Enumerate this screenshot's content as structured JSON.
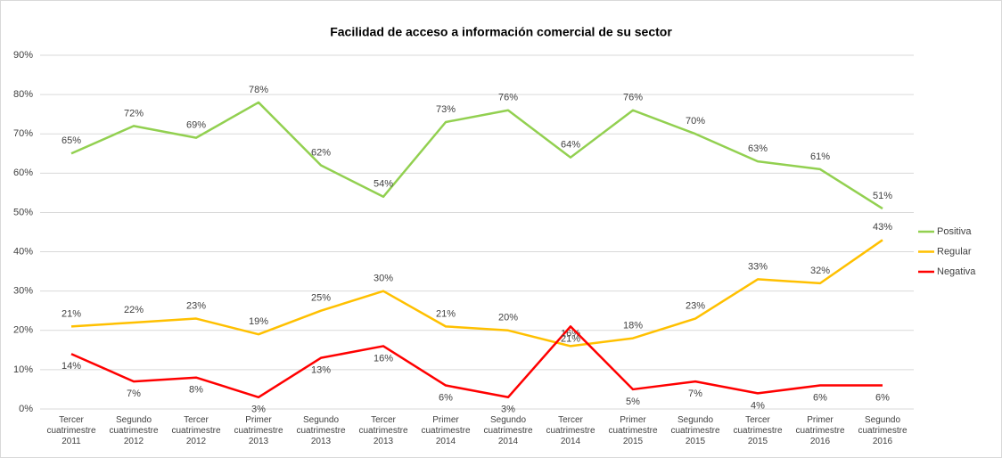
{
  "chart_data": {
    "type": "line",
    "title": "Facilidad de acceso a información comercial de su sector",
    "categories": [
      "Tercer cuatrimestre 2011",
      "Segundo cuatrimestre 2012",
      "Tercer cuatrimestre 2012",
      "Primer cuatrimestre 2013",
      "Segundo cuatrimestre 2013",
      "Tercer cuatrimestre 2013",
      "Primer cuatrimestre 2014",
      "Segundo cuatrimestre 2014",
      "Tercer cuatrimestre 2014",
      "Primer cuatrimestre 2015",
      "Segundo cuatrimestre 2015",
      "Tercer cuatrimestre 2015",
      "Primer cuatrimestre 2016",
      "Segundo cuatrimestre 2016"
    ],
    "series": [
      {
        "name": "Positiva",
        "color": "#92d050",
        "values": [
          65,
          72,
          69,
          78,
          62,
          54,
          73,
          76,
          64,
          76,
          70,
          63,
          61,
          51
        ],
        "value_labels": [
          "65%",
          "72%",
          "69%",
          "78%",
          "62%",
          "54%",
          "73%",
          "76%",
          "64%",
          "76%",
          "70%",
          "63%",
          "61%",
          "51%"
        ]
      },
      {
        "name": "Regular",
        "color": "#ffc000",
        "values": [
          21,
          22,
          23,
          19,
          25,
          30,
          21,
          20,
          16,
          18,
          23,
          33,
          32,
          43
        ],
        "value_labels": [
          "21%",
          "22%",
          "23%",
          "19%",
          "25%",
          "30%",
          "21%",
          "20%",
          "16%",
          "18%",
          "23%",
          "33%",
          "32%",
          "43%"
        ]
      },
      {
        "name": "Negativa",
        "color": "#ff0000",
        "values": [
          14,
          7,
          8,
          3,
          13,
          16,
          6,
          3,
          21,
          5,
          7,
          4,
          6,
          6
        ],
        "value_labels": [
          "14%",
          "7%",
          "8%",
          "3%",
          "13%",
          "16%",
          "6%",
          "3%",
          "21%",
          "5%",
          "7%",
          "4%",
          "6%",
          "6%"
        ]
      }
    ],
    "ylim": [
      0,
      90
    ],
    "yticks": [
      {
        "value": 0,
        "label": "0%"
      },
      {
        "value": 10,
        "label": "10%"
      },
      {
        "value": 20,
        "label": "20%"
      },
      {
        "value": 30,
        "label": "30%"
      },
      {
        "value": 40,
        "label": "40%"
      },
      {
        "value": 50,
        "label": "50%"
      },
      {
        "value": 60,
        "label": "60%"
      },
      {
        "value": 70,
        "label": "70%"
      },
      {
        "value": 80,
        "label": "80%"
      },
      {
        "value": 90,
        "label": "90%"
      }
    ],
    "grid": true,
    "legend": "right"
  }
}
